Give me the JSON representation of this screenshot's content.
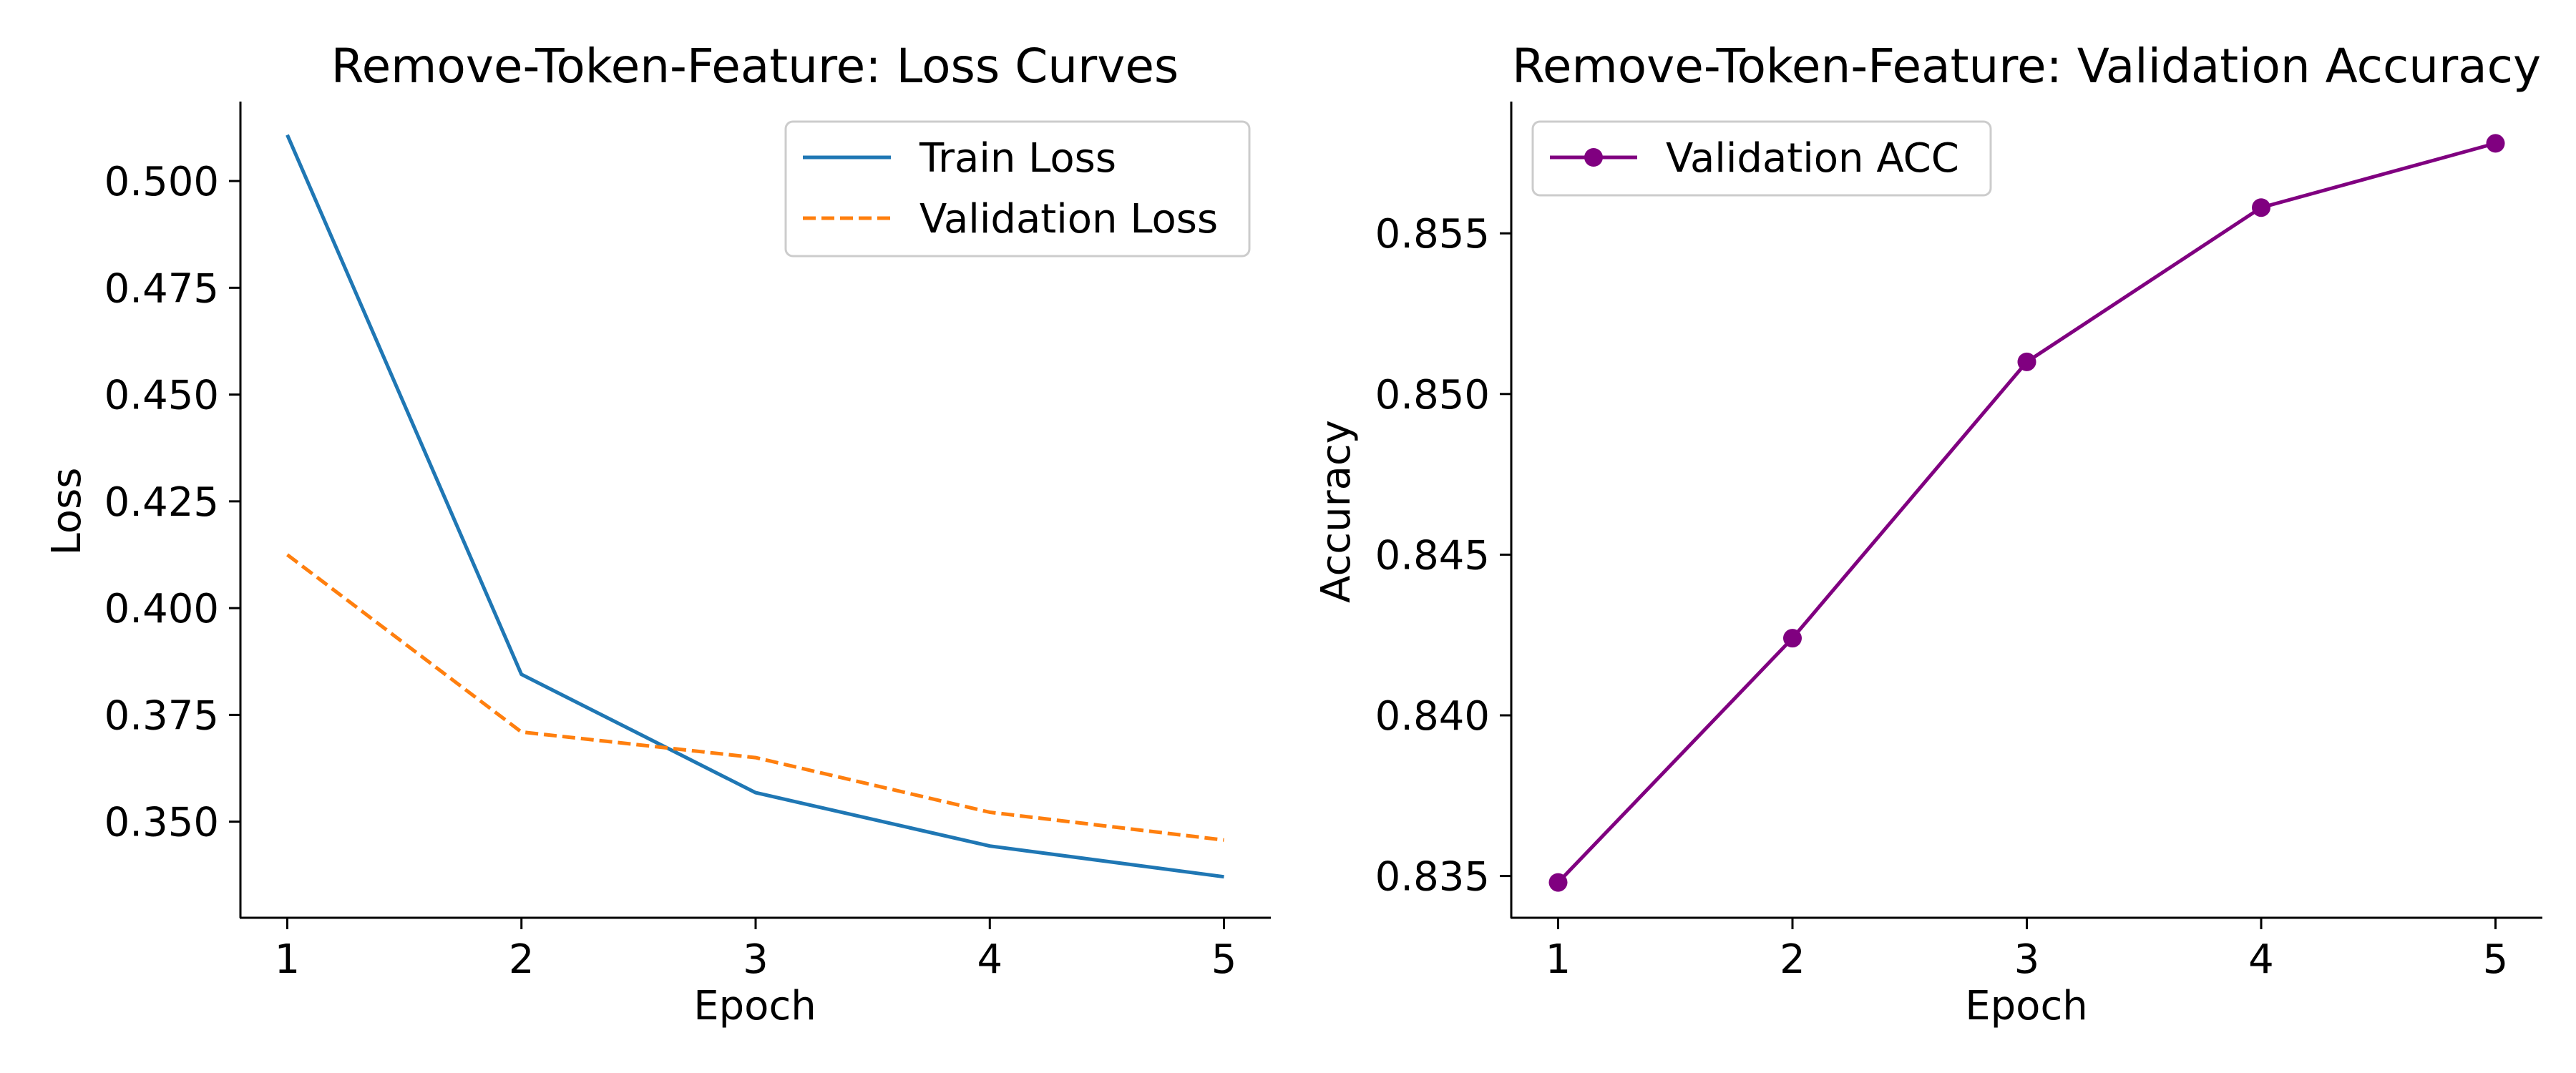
{
  "chart_data": [
    {
      "type": "line",
      "title": "Remove-Token-Feature: Loss Curves",
      "xlabel": "Epoch",
      "ylabel": "Loss",
      "x": [
        1,
        2,
        3,
        4,
        5
      ],
      "xticks": [
        "1",
        "2",
        "3",
        "4",
        "5"
      ],
      "xlim": [
        0.8,
        5.2
      ],
      "yticks": [
        "0.350",
        "0.375",
        "0.400",
        "0.425",
        "0.450",
        "0.475",
        "0.500"
      ],
      "ylim": [
        0.3275,
        0.5186
      ],
      "grid": false,
      "legend_position": "upper right",
      "series": [
        {
          "name": "Train Loss",
          "values": [
            0.5108,
            0.3845,
            0.3568,
            0.3443,
            0.3371
          ],
          "color": "#1f77b4",
          "style": "solid",
          "marker": "none"
        },
        {
          "name": "Validation Loss",
          "values": [
            0.4125,
            0.371,
            0.365,
            0.3522,
            0.3457
          ],
          "color": "#ff7f0e",
          "style": "dashed",
          "marker": "none"
        }
      ]
    },
    {
      "type": "line",
      "title": "Remove-Token-Feature: Validation Accuracy",
      "xlabel": "Epoch",
      "ylabel": "Accuracy",
      "x": [
        1,
        2,
        3,
        4,
        5
      ],
      "xticks": [
        "1",
        "2",
        "3",
        "4",
        "5"
      ],
      "xlim": [
        0.8,
        5.2
      ],
      "yticks": [
        "0.835",
        "0.840",
        "0.845",
        "0.850",
        "0.855"
      ],
      "ylim": [
        0.8337,
        0.8591
      ],
      "grid": false,
      "legend_position": "upper left",
      "series": [
        {
          "name": "Validation ACC",
          "values": [
            0.8348,
            0.8424,
            0.851,
            0.8558,
            0.8578
          ],
          "color": "#800080",
          "style": "solid",
          "marker": "circle"
        }
      ]
    }
  ]
}
